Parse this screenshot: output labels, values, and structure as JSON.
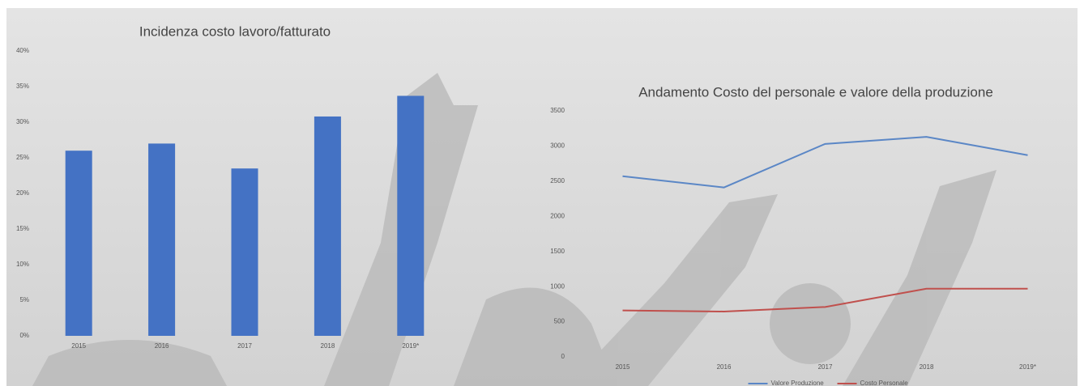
{
  "chart_data": [
    {
      "type": "bar",
      "title": "Incidenza costo lavoro/fatturato",
      "categories": [
        "2015",
        "2016",
        "2017",
        "2018",
        "2019*"
      ],
      "values": [
        26,
        27,
        23.5,
        30.8,
        33.7
      ],
      "color": "#4472c4",
      "ylim": [
        0,
        40
      ],
      "yticks": [
        {
          "value": 0,
          "label": "0%"
        },
        {
          "value": 5,
          "label": "5%"
        },
        {
          "value": 10,
          "label": "10%"
        },
        {
          "value": 15,
          "label": "15%"
        },
        {
          "value": 20,
          "label": "20%"
        },
        {
          "value": 25,
          "label": "25%"
        },
        {
          "value": 30,
          "label": "30%"
        },
        {
          "value": 35,
          "label": "35%"
        },
        {
          "value": 40,
          "label": "40%"
        }
      ]
    },
    {
      "type": "line",
      "title": "Andamento Costo del personale e valore della produzione",
      "categories": [
        "2015",
        "2016",
        "2017",
        "2018",
        "2019*"
      ],
      "series": [
        {
          "name": "Valore Produzione",
          "color": "#5b87c6",
          "values": [
            2570,
            2410,
            3030,
            3130,
            2870
          ]
        },
        {
          "name": "Costo Personale",
          "color": "#c0504d",
          "values": [
            660,
            645,
            710,
            970,
            970
          ]
        }
      ],
      "ylim": [
        0,
        3500
      ],
      "yticks": [
        0,
        500,
        1000,
        1500,
        2000,
        2500,
        3000,
        3500
      ],
      "legend": "bottom"
    }
  ]
}
